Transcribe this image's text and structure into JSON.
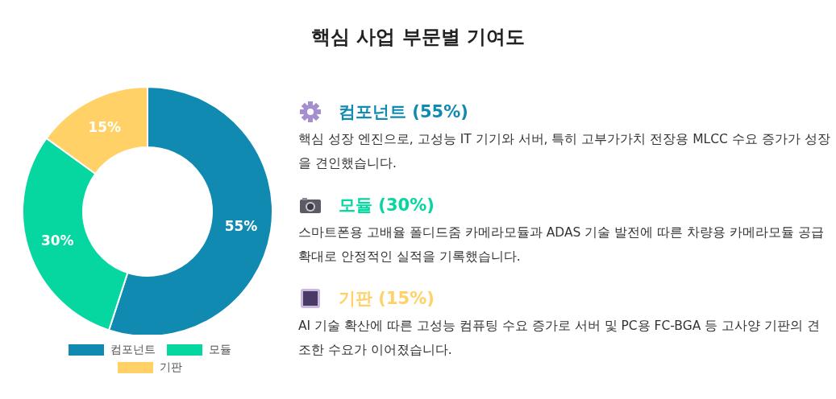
{
  "chart_data": {
    "type": "donut",
    "title": "핵심 사업 부문별 기여도",
    "categories": [
      "컴포넌트",
      "모듈",
      "기판"
    ],
    "values": [
      55,
      30,
      15
    ],
    "colors": [
      "#118ab2",
      "#06d6a0",
      "#ffd166"
    ],
    "value_labels": [
      "55%",
      "30%",
      "15%"
    ],
    "legend": "bottom",
    "annotations": [
      "컴포넌트 (55%)",
      "핵심 성장 엔진으로, 고성능 IT 기기와 서버, 특히 고부가가치 전장용 MLCC 수요 증가가 성장을 견인했습니다.",
      "모듈 (30%)",
      "스마트폰용 고배율 폴디드줌 카메라모듈과 ADAS 기술 발전에 따른 차량용 카메라모듈 공급 확대로 안정적인 실적을 기록했습니다.",
      "기판 (15%)",
      "AI 기술 확산에 따른 고성능 컴퓨팅 수요 증가로 서버 및 PC용 FC-BGA 등 고사양 기판의 견조한 수요가 이어졌습니다."
    ]
  }
}
